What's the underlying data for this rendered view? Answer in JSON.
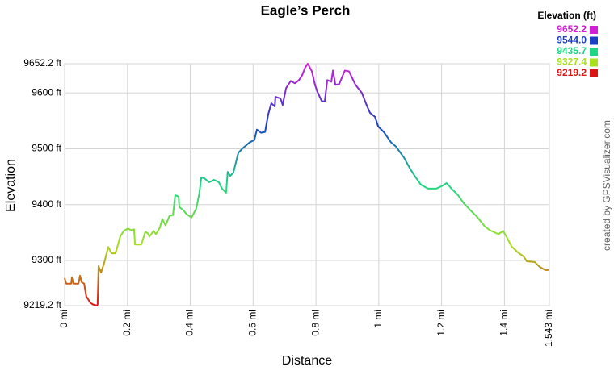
{
  "chart_data": {
    "type": "line",
    "title": "Eagle’s Perch",
    "x_label": "Distance",
    "y_label": "Elevation",
    "credit": "created by GPSVisualizer.com",
    "grid": true,
    "xlim": [
      0,
      1.543
    ],
    "ylim": [
      9219.2,
      9652.2
    ],
    "xticks": [
      {
        "value": 0,
        "label": "0 mi"
      },
      {
        "value": 0.2,
        "label": "0.2 mi"
      },
      {
        "value": 0.4,
        "label": "0.4 mi"
      },
      {
        "value": 0.6,
        "label": "0.6 mi"
      },
      {
        "value": 0.8,
        "label": "0.8 mi"
      },
      {
        "value": 1,
        "label": "1 mi"
      },
      {
        "value": 1.2,
        "label": "1.2 mi"
      },
      {
        "value": 1.4,
        "label": "1.4 mi"
      },
      {
        "value": 1.543,
        "label": "1.543 mi"
      }
    ],
    "yticks": [
      {
        "value": 9219.2,
        "label": "9219.2 ft"
      },
      {
        "value": 9300,
        "label": "9300 ft"
      },
      {
        "value": 9400,
        "label": "9400 ft"
      },
      {
        "value": 9500,
        "label": "9500 ft"
      },
      {
        "value": 9600,
        "label": "9600 ft"
      },
      {
        "value": 9652.2,
        "label": "9652.2 ft"
      }
    ],
    "legend": {
      "title": "Elevation (ft)",
      "entries": [
        {
          "value": 9652.2,
          "color": "#d21fd6"
        },
        {
          "value": 9544,
          "label": "9544.0",
          "color": "#1a3fc4"
        },
        {
          "value": 9435.7,
          "color": "#1fd684"
        },
        {
          "value": 9327.4,
          "color": "#a8e01f"
        },
        {
          "value": 9219.2,
          "color": "#dc1414"
        }
      ]
    },
    "x": [
      0,
      0.005,
      0.021,
      0.023,
      0.028,
      0.044,
      0.049,
      0.054,
      0.062,
      0.069,
      0.082,
      0.09,
      0.103,
      0.105,
      0.108,
      0.116,
      0.126,
      0.139,
      0.149,
      0.162,
      0.177,
      0.188,
      0.201,
      0.213,
      0.221,
      0.224,
      0.244,
      0.257,
      0.265,
      0.27,
      0.283,
      0.291,
      0.303,
      0.311,
      0.321,
      0.334,
      0.345,
      0.352,
      0.363,
      0.365,
      0.378,
      0.388,
      0.404,
      0.419,
      0.429,
      0.435,
      0.445,
      0.46,
      0.476,
      0.491,
      0.501,
      0.514,
      0.519,
      0.527,
      0.537,
      0.553,
      0.568,
      0.589,
      0.604,
      0.612,
      0.625,
      0.638,
      0.648,
      0.658,
      0.669,
      0.671,
      0.687,
      0.694,
      0.705,
      0.72,
      0.733,
      0.746,
      0.756,
      0.766,
      0.774,
      0.787,
      0.797,
      0.805,
      0.818,
      0.828,
      0.836,
      0.849,
      0.854,
      0.862,
      0.874,
      0.892,
      0.905,
      0.926,
      0.946,
      0.962,
      0.972,
      0.988,
      0.998,
      1.016,
      1.039,
      1.054,
      1.08,
      1.101,
      1.116,
      1.134,
      1.157,
      1.183,
      1.204,
      1.216,
      1.234,
      1.252,
      1.27,
      1.294,
      1.312,
      1.337,
      1.353,
      1.381,
      1.396,
      1.409,
      1.422,
      1.44,
      1.461,
      1.471,
      1.497,
      1.512,
      1.53,
      1.543
    ],
    "values": [
      9268.6,
      9258.6,
      9258.6,
      9270.0,
      9258.6,
      9258.6,
      9272.9,
      9261.4,
      9258.6,
      9235.7,
      9224.3,
      9221.4,
      9219.2,
      9221.4,
      9290.0,
      9278.6,
      9295.7,
      9324.3,
      9312.9,
      9312.9,
      9342.9,
      9352.9,
      9357.1,
      9354.3,
      9355.7,
      9328.6,
      9328.6,
      9351.4,
      9348.6,
      9342.9,
      9352.9,
      9347.1,
      9358.6,
      9374.3,
      9362.9,
      9380.0,
      9381.4,
      9417.1,
      9414.3,
      9395.7,
      9390.0,
      9382.9,
      9377.1,
      9392.9,
      9421.4,
      9448.6,
      9447.1,
      9440.0,
      9444.3,
      9440.0,
      9428.6,
      9421.4,
      9458.6,
      9451.4,
      9457.1,
      9492.9,
      9501.4,
      9511.4,
      9515.7,
      9534.3,
      9528.6,
      9530.0,
      9561.4,
      9581.4,
      9575.7,
      9592.9,
      9590.0,
      9578.6,
      9608.6,
      9621.4,
      9617.1,
      9622.9,
      9631.4,
      9645.7,
      9652.2,
      9638.6,
      9614.3,
      9601.4,
      9585.7,
      9584.3,
      9622.9,
      9620.0,
      9640.0,
      9614.3,
      9615.7,
      9640.0,
      9638.6,
      9614.3,
      9600.0,
      9577.1,
      9564.3,
      9557.1,
      9540.0,
      9530.0,
      9511.4,
      9504.3,
      9484.3,
      9462.9,
      9450.0,
      9435.7,
      9428.6,
      9428.6,
      9434.3,
      9438.6,
      9427.1,
      9417.1,
      9402.9,
      9388.6,
      9378.6,
      9361.4,
      9354.3,
      9347.1,
      9352.9,
      9340.0,
      9325.7,
      9315.7,
      9307.1,
      9298.6,
      9297.1,
      9288.6,
      9282.9,
      9282.9
    ]
  }
}
